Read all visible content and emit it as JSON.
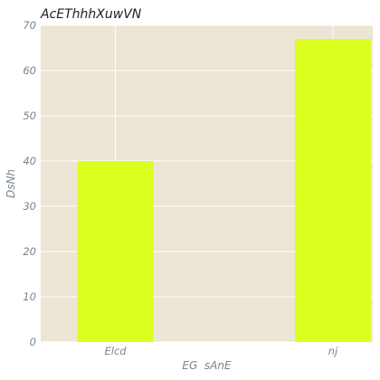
{
  "chart_data": {
    "type": "bar",
    "title": "AcEThhhXuwVN",
    "xlabel": "EG  sAnE",
    "ylabel": "DsNh",
    "categories": [
      "Elcd",
      "nj"
    ],
    "values": [
      40,
      67
    ],
    "ylim": [
      0,
      70
    ],
    "yticks": [
      0,
      10,
      20,
      30,
      40,
      50,
      60,
      70
    ],
    "grid": true,
    "colors": {
      "bar": "#dbff1f",
      "plot_background": "#ede5d5",
      "grid": "#ffffff",
      "tick_text": "#77868f",
      "title_text": "#222222"
    }
  }
}
